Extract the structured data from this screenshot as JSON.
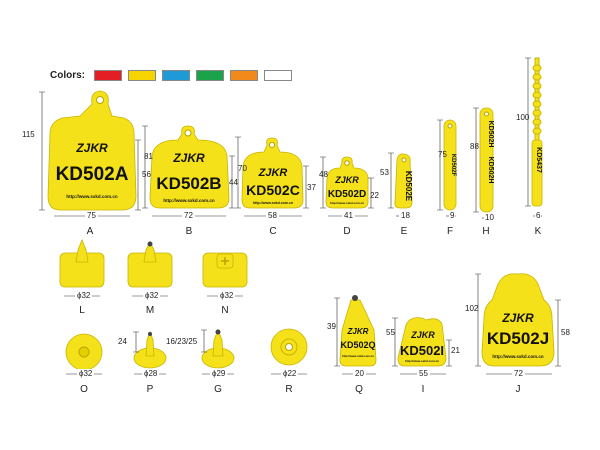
{
  "colors": {
    "label": "Colors:",
    "swatches": [
      "#e31e24",
      "#f5d400",
      "#1e9ad6",
      "#1aa34a",
      "#f28a1b",
      "#ffffff"
    ]
  },
  "tag_color": "#f5e11a",
  "tag_stroke": "#c9b400",
  "tags": {
    "A": {
      "letter": "A",
      "brand": "ZJKR",
      "model": "KD502A",
      "url": "http://www.sxkd.com.cn",
      "height": "115",
      "inner_h": "56",
      "width": "75"
    },
    "B": {
      "letter": "B",
      "brand": "ZJKR",
      "model": "KD502B",
      "url": "http://www.sxkd.com.cn",
      "height": "81",
      "inner_h": "44",
      "width": "72"
    },
    "C": {
      "letter": "C",
      "brand": "ZJKR",
      "model": "KD502C",
      "url": "http://www.sxkd.com.cn",
      "height": "70",
      "inner_h": "37",
      "width": "58"
    },
    "D": {
      "letter": "D",
      "brand": "ZJKR",
      "model": "KD502D",
      "url": "http://www.sxkd.com.cn",
      "height": "48",
      "inner_h": "22",
      "width": "41"
    },
    "E": {
      "letter": "E",
      "model": "KD502E",
      "height": "53",
      "width": "18"
    },
    "F": {
      "letter": "F",
      "model": "KD502F",
      "height": "75",
      "width": "9"
    },
    "H": {
      "letter": "H",
      "model_top": "KD502H",
      "model_bottom": "KD502H",
      "height": "88",
      "width": "10"
    },
    "K": {
      "letter": "K",
      "model": "KD5437",
      "height": "100",
      "width": "6"
    },
    "L": {
      "letter": "L",
      "diameter": "ϕ32"
    },
    "M": {
      "letter": "M",
      "diameter": "ϕ32"
    },
    "N": {
      "letter": "N",
      "diameter": "ϕ32"
    },
    "O": {
      "letter": "O",
      "diameter": "ϕ32"
    },
    "P": {
      "letter": "P",
      "height": "24",
      "diameter": "ϕ28"
    },
    "G": {
      "letter": "G",
      "height": "16/23/25",
      "diameter": "ϕ29"
    },
    "R": {
      "letter": "R",
      "diameter": "ϕ22"
    },
    "Q": {
      "letter": "Q",
      "brand": "ZJKR",
      "model": "KD502Q",
      "url": "http://www.sxkd.com.cn",
      "height": "39",
      "width": "20"
    },
    "I": {
      "letter": "I",
      "brand": "ZJKR",
      "model": "KD502I",
      "url": "http://www.sxkd.com.cn",
      "height": "55",
      "inner_h": "21",
      "width": "55"
    },
    "J": {
      "letter": "J",
      "brand": "ZJKR",
      "model": "KD502J",
      "url": "http://www.sxkd.com.cn",
      "height": "102",
      "inner_h": "58",
      "width": "72"
    }
  }
}
